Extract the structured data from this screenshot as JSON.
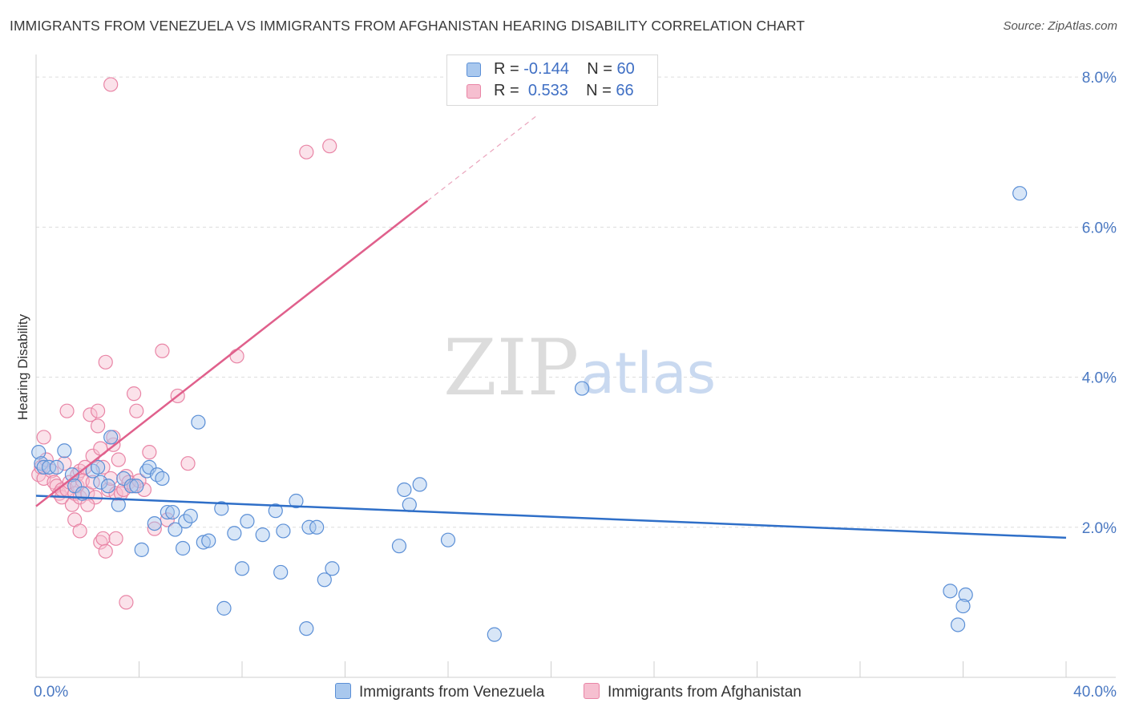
{
  "title": "IMMIGRANTS FROM VENEZUELA VS IMMIGRANTS FROM AFGHANISTAN HEARING DISABILITY CORRELATION CHART",
  "source": "Source: ZipAtlas.com",
  "watermark": {
    "zip": "ZIP",
    "atlas": "atlas"
  },
  "legend": {
    "rows": [
      {
        "r_label": "R = ",
        "r_value": "-0.144",
        "n_label": "N = ",
        "n_value": "60"
      },
      {
        "r_label": "R = ",
        "r_value": "0.533",
        "n_label": "N = ",
        "n_value": "66"
      }
    ]
  },
  "colors": {
    "venezuela_fill": "#a9c8ee",
    "venezuela_stroke": "#5b8fd6",
    "venezuela_line": "#2f6fc8",
    "afghanistan_fill": "#f6bfd0",
    "afghanistan_stroke": "#e985a6",
    "afghanistan_line": "#e0608c",
    "tick_text": "#4a78c2",
    "grid": "#dddddd"
  },
  "chart_data": {
    "type": "scatter",
    "title": "IMMIGRANTS FROM VENEZUELA VS IMMIGRANTS FROM AFGHANISTAN HEARING DISABILITY CORRELATION CHART",
    "xlabel": "",
    "ylabel": "Hearing Disability",
    "xlim": [
      0,
      40
    ],
    "ylim": [
      0,
      8.3
    ],
    "x_tick_labels": [
      "0.0%",
      "40.0%"
    ],
    "y_ticks": [
      2,
      4,
      6,
      8
    ],
    "y_tick_labels": [
      "2.0%",
      "4.0%",
      "6.0%",
      "8.0%"
    ],
    "grid": "horizontal dashed",
    "legend_position": "top-center",
    "series": [
      {
        "name": "Immigrants from Venezuela",
        "r": -0.144,
        "n": 60,
        "trend": {
          "x": [
            0,
            40
          ],
          "y": [
            2.42,
            1.86
          ]
        },
        "points": [
          [
            0.1,
            3.0
          ],
          [
            0.2,
            2.85
          ],
          [
            0.3,
            2.8
          ],
          [
            0.5,
            2.8
          ],
          [
            0.8,
            2.8
          ],
          [
            1.1,
            3.02
          ],
          [
            1.4,
            2.7
          ],
          [
            1.5,
            2.55
          ],
          [
            1.8,
            2.45
          ],
          [
            2.2,
            2.75
          ],
          [
            2.4,
            2.8
          ],
          [
            2.5,
            2.6
          ],
          [
            2.8,
            2.55
          ],
          [
            2.9,
            3.2
          ],
          [
            3.2,
            2.3
          ],
          [
            3.4,
            2.65
          ],
          [
            3.7,
            2.55
          ],
          [
            3.9,
            2.55
          ],
          [
            4.1,
            1.7
          ],
          [
            4.3,
            2.75
          ],
          [
            4.4,
            2.8
          ],
          [
            4.7,
            2.7
          ],
          [
            4.9,
            2.65
          ],
          [
            5.1,
            2.2
          ],
          [
            5.3,
            2.2
          ],
          [
            5.4,
            1.97
          ],
          [
            5.7,
            1.72
          ],
          [
            5.8,
            2.08
          ],
          [
            6.0,
            2.15
          ],
          [
            6.3,
            3.4
          ],
          [
            6.5,
            1.8
          ],
          [
            6.7,
            1.82
          ],
          [
            7.2,
            2.25
          ],
          [
            7.3,
            0.92
          ],
          [
            7.7,
            1.92
          ],
          [
            8.0,
            1.45
          ],
          [
            8.2,
            2.08
          ],
          [
            8.8,
            1.9
          ],
          [
            9.3,
            2.22
          ],
          [
            9.5,
            1.4
          ],
          [
            9.6,
            1.95
          ],
          [
            10.1,
            2.35
          ],
          [
            10.5,
            0.65
          ],
          [
            10.6,
            2.0
          ],
          [
            10.9,
            2.0
          ],
          [
            11.5,
            1.45
          ],
          [
            14.1,
            1.75
          ],
          [
            14.3,
            2.5
          ],
          [
            14.5,
            2.3
          ],
          [
            14.9,
            2.57
          ],
          [
            16.0,
            1.83
          ],
          [
            17.8,
            0.57
          ],
          [
            21.2,
            3.85
          ],
          [
            35.5,
            1.15
          ],
          [
            35.8,
            0.7
          ],
          [
            36.1,
            1.1
          ],
          [
            38.2,
            6.45
          ],
          [
            36.0,
            0.95
          ],
          [
            11.2,
            1.3
          ],
          [
            4.6,
            2.05
          ]
        ]
      },
      {
        "name": "Immigrants from Afghanistan",
        "r": 0.533,
        "n": 66,
        "trend": {
          "x": [
            0,
            15.2
          ],
          "y": [
            2.28,
            6.35
          ]
        },
        "trend_dashed": {
          "x": [
            15.2,
            19.5
          ],
          "y": [
            6.35,
            7.5
          ]
        },
        "points": [
          [
            0.1,
            2.7
          ],
          [
            0.2,
            2.8
          ],
          [
            0.3,
            3.2
          ],
          [
            0.3,
            2.65
          ],
          [
            0.4,
            2.9
          ],
          [
            0.6,
            2.75
          ],
          [
            0.7,
            2.6
          ],
          [
            0.8,
            2.55
          ],
          [
            0.9,
            2.45
          ],
          [
            1.0,
            2.4
          ],
          [
            1.0,
            2.5
          ],
          [
            1.1,
            2.85
          ],
          [
            1.2,
            2.5
          ],
          [
            1.2,
            3.55
          ],
          [
            1.3,
            2.6
          ],
          [
            1.4,
            2.3
          ],
          [
            1.5,
            2.45
          ],
          [
            1.5,
            2.1
          ],
          [
            1.6,
            2.7
          ],
          [
            1.6,
            2.55
          ],
          [
            1.7,
            2.4
          ],
          [
            1.7,
            2.75
          ],
          [
            1.7,
            1.95
          ],
          [
            1.8,
            2.62
          ],
          [
            1.9,
            2.8
          ],
          [
            2.0,
            2.45
          ],
          [
            2.1,
            3.5
          ],
          [
            2.2,
            2.6
          ],
          [
            2.2,
            2.95
          ],
          [
            2.3,
            2.4
          ],
          [
            2.4,
            3.55
          ],
          [
            2.4,
            3.35
          ],
          [
            2.5,
            1.8
          ],
          [
            2.5,
            3.05
          ],
          [
            2.6,
            2.8
          ],
          [
            2.6,
            1.85
          ],
          [
            2.7,
            4.2
          ],
          [
            2.7,
            1.68
          ],
          [
            2.8,
            2.5
          ],
          [
            2.9,
            2.65
          ],
          [
            2.9,
            7.9
          ],
          [
            3.0,
            3.1
          ],
          [
            3.0,
            3.2
          ],
          [
            3.1,
            2.45
          ],
          [
            3.1,
            1.85
          ],
          [
            3.2,
            2.9
          ],
          [
            3.3,
            2.45
          ],
          [
            3.4,
            2.5
          ],
          [
            3.5,
            2.68
          ],
          [
            3.5,
            1.0
          ],
          [
            3.6,
            2.6
          ],
          [
            3.8,
            2.55
          ],
          [
            3.8,
            3.78
          ],
          [
            3.9,
            3.55
          ],
          [
            4.2,
            2.5
          ],
          [
            4.4,
            3.0
          ],
          [
            4.6,
            1.98
          ],
          [
            4.9,
            4.35
          ],
          [
            5.1,
            2.1
          ],
          [
            5.5,
            3.75
          ],
          [
            5.9,
            2.85
          ],
          [
            7.8,
            4.28
          ],
          [
            10.5,
            7.0
          ],
          [
            11.4,
            7.08
          ],
          [
            4.0,
            2.62
          ],
          [
            2.0,
            2.3
          ]
        ]
      }
    ]
  }
}
